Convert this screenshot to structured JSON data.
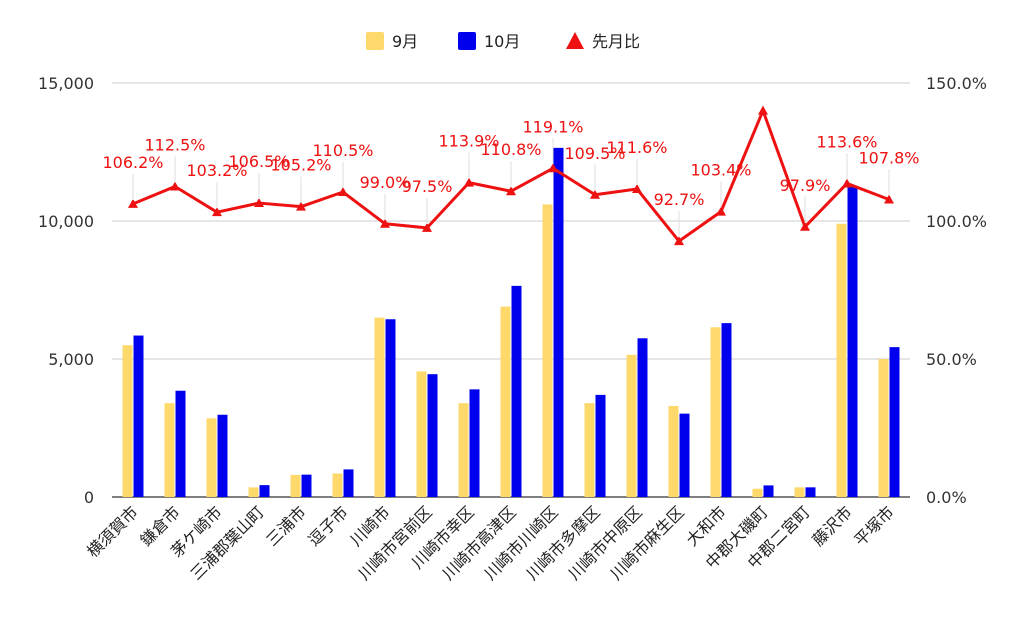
{
  "chart_data": {
    "type": "bar",
    "categories": [
      "横須賀市",
      "鎌倉市",
      "茅ケ崎市",
      "三浦郡葉山町",
      "三浦市",
      "逗子市",
      "川崎市",
      "川崎市宮前区",
      "川崎市幸区",
      "川崎市高津区",
      "川崎市川崎区",
      "川崎市多摩区",
      "川崎市中原区",
      "川崎市麻生区",
      "大和市",
      "中郡大磯町",
      "中郡二宮町",
      "藤沢市",
      "平塚市"
    ],
    "series": [
      {
        "name": "9月",
        "type": "bar",
        "axis": "left",
        "color": "#fdd96c",
        "values": [
          5500,
          3400,
          2850,
          350,
          800,
          850,
          6500,
          4550,
          3400,
          6900,
          10600,
          3400,
          5150,
          3300,
          6150,
          300,
          350,
          9900,
          5000
        ]
      },
      {
        "name": "10月",
        "type": "bar",
        "axis": "left",
        "color": "#0000ee",
        "values": [
          5850,
          3850,
          2980,
          430,
          810,
          1000,
          6440,
          4450,
          3900,
          7650,
          12650,
          3700,
          5750,
          3020,
          6300,
          420,
          350,
          11250,
          5430
        ]
      },
      {
        "name": "先月比",
        "type": "line",
        "axis": "right",
        "color": "#ee1111",
        "values": [
          106.2,
          112.5,
          103.2,
          106.5,
          105.2,
          110.5,
          99.0,
          97.5,
          113.9,
          110.8,
          119.1,
          109.5,
          111.6,
          92.7,
          103.4,
          140.0,
          97.9,
          113.6,
          107.8
        ],
        "labels": [
          "106.2%",
          "112.5%",
          "103.2%",
          "106.5%",
          "105.2%",
          "110.5%",
          "99.0%",
          "97.5%",
          "113.9%",
          "110.8%",
          "119.1%",
          "109.5%",
          "111.6%",
          "92.7%",
          "103.4%",
          "",
          "97.9%",
          "113.6%",
          "107.8%"
        ]
      }
    ],
    "y_left": {
      "ylim": [
        0,
        15000
      ],
      "ticks": [
        0,
        5000,
        10000,
        15000
      ],
      "tick_labels": [
        "0",
        "5,000",
        "10,000",
        "15,000"
      ]
    },
    "y_right": {
      "ylim": [
        0,
        150
      ],
      "ticks": [
        0,
        50,
        100,
        150
      ],
      "tick_labels": [
        "0.0%",
        "50.0%",
        "100.0%",
        "150.0%"
      ]
    },
    "legend_position": "top-center",
    "grid": true,
    "title": "",
    "xlabel": "",
    "ylabel": ""
  }
}
